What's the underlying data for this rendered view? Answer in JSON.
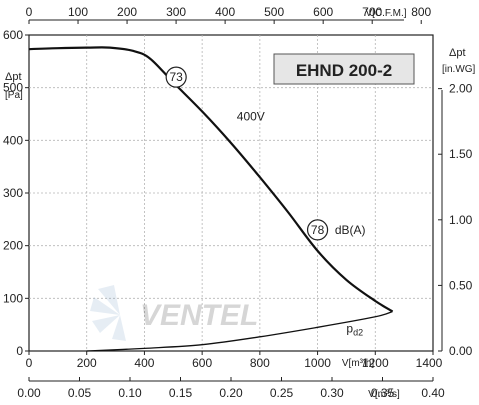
{
  "chart_data": {
    "type": "line",
    "model": "EHND 200-2",
    "voltage_label": "400V",
    "watermark": "VENTEL",
    "x_units": {
      "main": "V[m³/h]",
      "top": "V[C.F.M.]",
      "bottom": "V[m³/s]"
    },
    "y_units": {
      "left_title": "Δpt",
      "left_unit": "[Pa]",
      "right_title": "Δpt",
      "right_unit": "[in.WG]"
    },
    "axes": {
      "x_main": {
        "min": 0,
        "max": 1400,
        "ticks": [
          0,
          200,
          400,
          600,
          800,
          1000,
          1200,
          1400
        ]
      },
      "x_top_cfm": {
        "ticks": [
          0,
          100,
          200,
          300,
          400,
          500,
          600,
          700,
          800
        ]
      },
      "x_bottom_m3s": {
        "ticks": [
          "0.00",
          "0.05",
          "0.10",
          "0.15",
          "0.20",
          "0.25",
          "0.30",
          "0.35",
          "0.40"
        ]
      },
      "y_left_pa": {
        "min": 0,
        "max": 600,
        "ticks": [
          0,
          100,
          200,
          300,
          400,
          500,
          600
        ]
      },
      "y_right_inwg": {
        "ticks": [
          "0.00",
          "0.50",
          "1.00",
          "1.50",
          "2.00"
        ]
      }
    },
    "series": [
      {
        "name": "400V",
        "x": [
          0,
          100,
          200,
          280,
          360,
          420,
          500,
          600,
          700,
          800,
          900,
          1000,
          1100,
          1200,
          1260
        ],
        "y": [
          573,
          575,
          576,
          576,
          570,
          555,
          510,
          455,
          395,
          330,
          262,
          190,
          135,
          95,
          75
        ]
      },
      {
        "name": "pd2",
        "x": [
          200,
          400,
          600,
          800,
          1000,
          1200,
          1260
        ],
        "y": [
          0,
          5,
          12,
          27,
          45,
          65,
          75
        ]
      }
    ],
    "annotations": [
      {
        "text": "73",
        "x": 510,
        "y": 520
      },
      {
        "text": "78",
        "x": 1000,
        "y": 230
      },
      {
        "text": "dB(A)",
        "x": 1060,
        "y": 230
      },
      {
        "text": "pd2",
        "x": 1100,
        "y": 35
      },
      {
        "text": "400V",
        "x": 720,
        "y": 445
      }
    ]
  }
}
